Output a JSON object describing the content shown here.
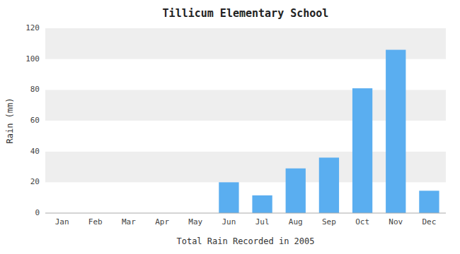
{
  "chart_data": {
    "type": "bar",
    "title": "Tillicum Elementary School",
    "xlabel": "Total Rain Recorded in 2005",
    "ylabel": "Rain (mm)",
    "categories": [
      "Jan",
      "Feb",
      "Mar",
      "Apr",
      "May",
      "Jun",
      "Jul",
      "Aug",
      "Sep",
      "Oct",
      "Nov",
      "Dec"
    ],
    "values": [
      0,
      0,
      0,
      0,
      0,
      20,
      11.5,
      29,
      36,
      81,
      106,
      14.5
    ],
    "color": "#5aaef0",
    "ylim": [
      0,
      120
    ],
    "yticks": [
      0,
      20,
      40,
      60,
      80,
      100,
      120
    ]
  }
}
